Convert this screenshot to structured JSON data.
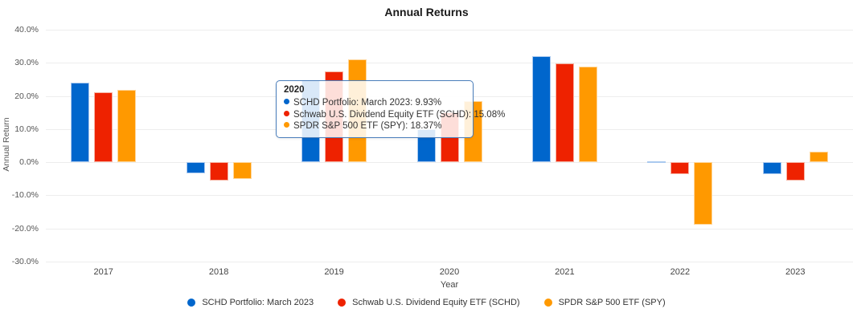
{
  "title": "Annual Returns",
  "axes": {
    "y_label": "Annual Return",
    "x_label": "Year"
  },
  "chart_data": {
    "type": "bar",
    "title": "Annual Returns",
    "xlabel": "Year",
    "ylabel": "Annual Return",
    "categories": [
      "2017",
      "2018",
      "2019",
      "2020",
      "2021",
      "2022",
      "2023"
    ],
    "series": [
      {
        "name": "SCHD Portfolio: March 2023",
        "color": "#0066cc",
        "border_color": "#aac9ef",
        "values": [
          23.9,
          -3.4,
          24.7,
          9.93,
          32.0,
          0.3,
          -3.6
        ]
      },
      {
        "name": "Schwab U.S. Dividend Equity ETF (SCHD)",
        "color": "#ee2200",
        "border_color": "#f7b2a1",
        "values": [
          21.0,
          -5.6,
          27.3,
          15.08,
          29.8,
          -3.7,
          -5.6
        ]
      },
      {
        "name": "SPDR S&P 500 ETF (SPY)",
        "color": "#ff9900",
        "border_color": "#ffd699",
        "values": [
          21.8,
          -5.0,
          31.1,
          18.37,
          28.8,
          -18.9,
          3.1
        ]
      }
    ],
    "ylim": [
      -30,
      40
    ],
    "y_ticks": [
      {
        "value": 40,
        "label": "40.0%"
      },
      {
        "value": 30,
        "label": "30.0%"
      },
      {
        "value": 20,
        "label": "20.0%"
      },
      {
        "value": 10,
        "label": "10.0%"
      },
      {
        "value": 0,
        "label": "0.0%"
      },
      {
        "value": -10,
        "label": "-10.0%"
      },
      {
        "value": -20,
        "label": "-20.0%"
      },
      {
        "value": -30,
        "label": "-30.0%"
      }
    ],
    "grid": true,
    "legend_position": "bottom"
  },
  "tooltip": {
    "header": "2020",
    "items": [
      "SCHD Portfolio: March 2023: 9.93%",
      "Schwab U.S. Dividend Equity ETF (SCHD): 15.08%",
      "SPDR S&P 500 ETF (SPY): 18.37%"
    ],
    "border_color": "#4a7ebb"
  }
}
